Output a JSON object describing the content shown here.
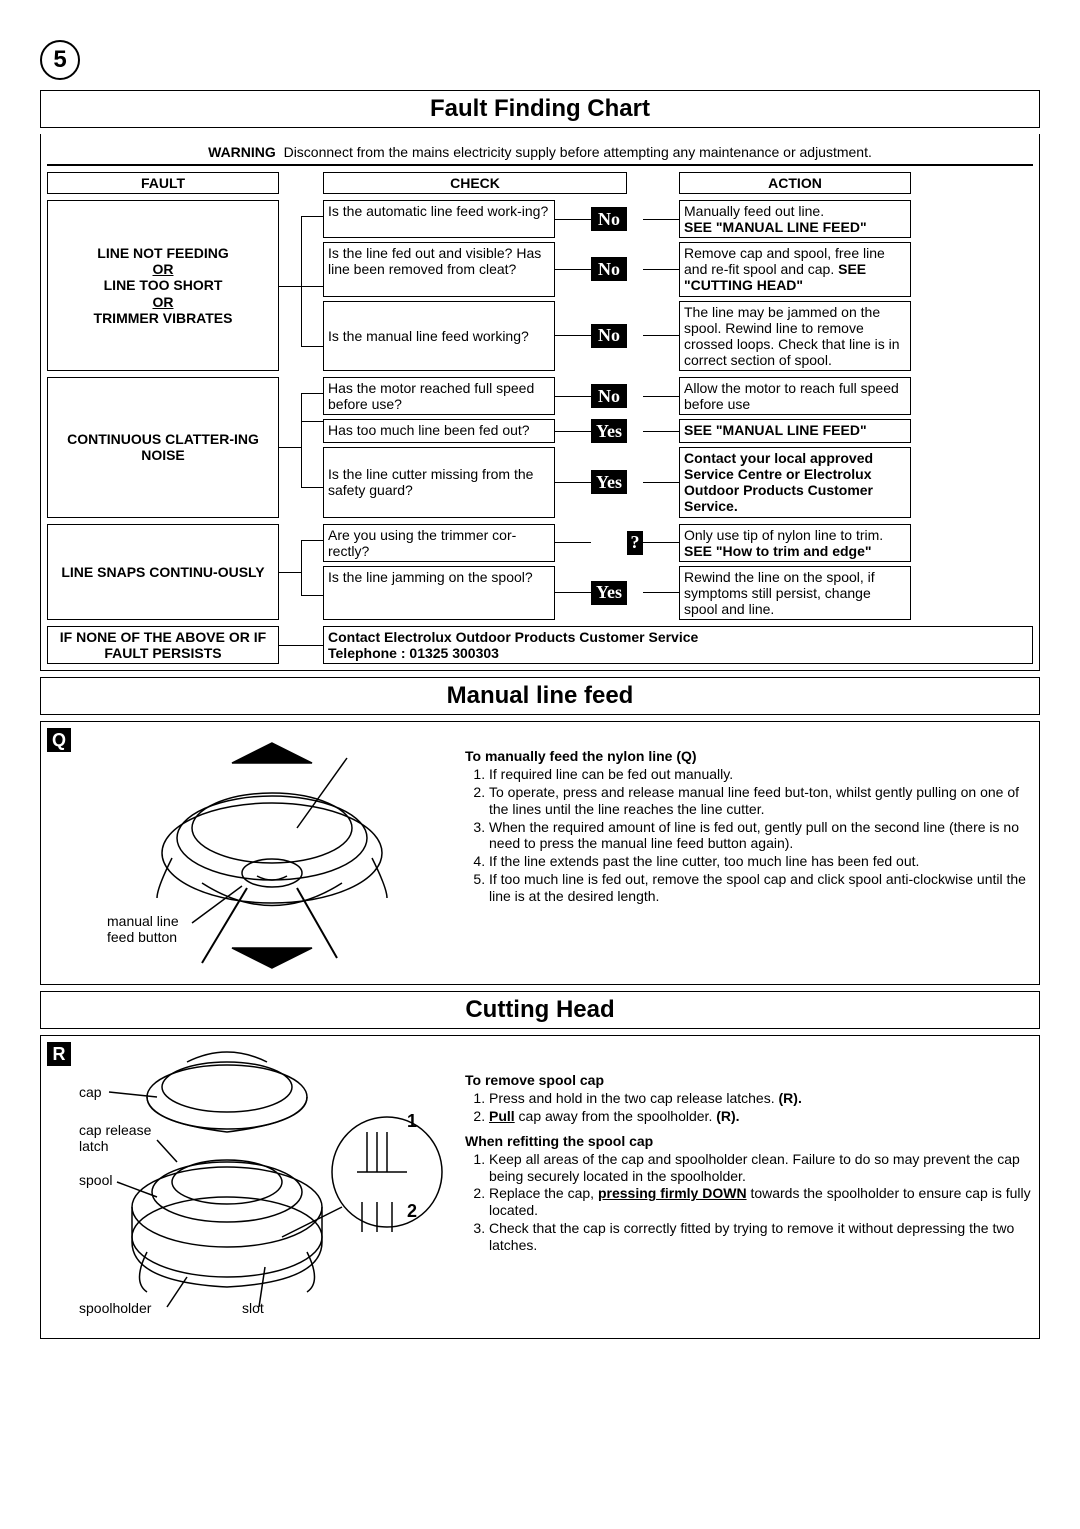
{
  "page_number": "5",
  "chart_title": "Fault Finding Chart",
  "warning_label": "WARNING",
  "warning_text": "Disconnect from the mains electricity supply before attempting any maintenance or adjustment.",
  "headers": {
    "fault": "FAULT",
    "check": "CHECK",
    "action": "ACTION"
  },
  "faults": {
    "f1_l1": "LINE NOT FEEDING",
    "f1_or1": "OR",
    "f1_l2": "LINE TOO SHORT",
    "f1_or2": "OR",
    "f1_l3": "TRIMMER VIBRATES",
    "f2": "CONTINUOUS CLATTER-ING NOISE",
    "f3": "LINE SNAPS CONTINU-OUSLY",
    "f4": "IF NONE OF THE ABOVE OR IF FAULT PERSISTS"
  },
  "checks": {
    "c1": "Is the automatic line feed work-ing?",
    "c2": "Is the line fed out and visible? Has line been removed from cleat?",
    "c3": "Is the manual line feed working?",
    "c4": "Has the motor reached full speed before use?",
    "c5": "Has too much line been fed out?",
    "c6": "Is the line cutter missing from the safety guard?",
    "c7": "Are you using the trimmer cor-rectly?",
    "c8": "Is the line jamming on the spool?"
  },
  "answers": {
    "no": "No",
    "yes": "Yes",
    "q": "?"
  },
  "actions": {
    "a1_t": "Manually feed out line.",
    "a1_b": "SEE \"MANUAL LINE FEED\"",
    "a2_t": "Remove cap and spool, free line and re-fit spool and cap.  ",
    "a2_b1": "SEE \"CUTTING HEAD\"",
    "a3": "The line may be jammed on the spool.  Rewind line to remove crossed loops. Check that line is in correct section of spool.",
    "a4": "Allow the motor to reach full speed before use",
    "a5": "SEE \"MANUAL LINE FEED\"",
    "a6": "Contact your local approved Service Centre or Electrolux Outdoor Products Customer Service.",
    "a7_t": "Only use tip of nylon line to trim.",
    "a7_b": "SEE \"How to trim and edge\"",
    "a8": "Rewind the line on the spool, if symptoms still persist, change spool and line."
  },
  "contact": {
    "line1": "Contact Electrolux Outdoor Products Customer Service",
    "line2": "Telephone : 01325 300303"
  },
  "manual_feed": {
    "title": "Manual line feed",
    "fig_label": "Q",
    "caption": "manual line feed button",
    "heading": "To manually feed the nylon line (Q)",
    "steps": [
      "If required line can be fed out manually.",
      "To operate, press and release manual line feed but-ton, whilst gently pulling on one of the lines until the line reaches the line cutter.",
      "When the required amount of line is fed out, gently pull on the second line (there is no need to press the manual line feed button again).",
      "If the line extends past the line cutter, too much line has been fed out.",
      "If too much line is fed out, remove the spool cap and click spool anti-clockwise until the line is at the desired length."
    ]
  },
  "cutting_head": {
    "title": "Cutting Head",
    "fig_label": "R",
    "labels": {
      "cap": "cap",
      "latch": "cap release latch",
      "spool": "spool",
      "holder": "spoolholder",
      "slot": "slot"
    },
    "callout1": "1",
    "callout2": "2",
    "h1": "To remove spool cap",
    "s1": [
      "Press and hold in the two cap release latches. <b>(R).</b>",
      "<b><u>Pull</u></b> cap away from the spoolholder. <b>(R).</b>"
    ],
    "h2": "When refitting the spool cap",
    "s2": [
      "Keep all areas of the cap and spoolholder clean. Failure to do so may prevent the cap being securely located in the spoolholder.",
      "Replace the cap, <b><u>pressing firmly DOWN</u></b>  towards the spoolholder to ensure cap is fully located.",
      "Check that the cap is correctly fitted by trying to remove it without depressing the two latches."
    ]
  }
}
